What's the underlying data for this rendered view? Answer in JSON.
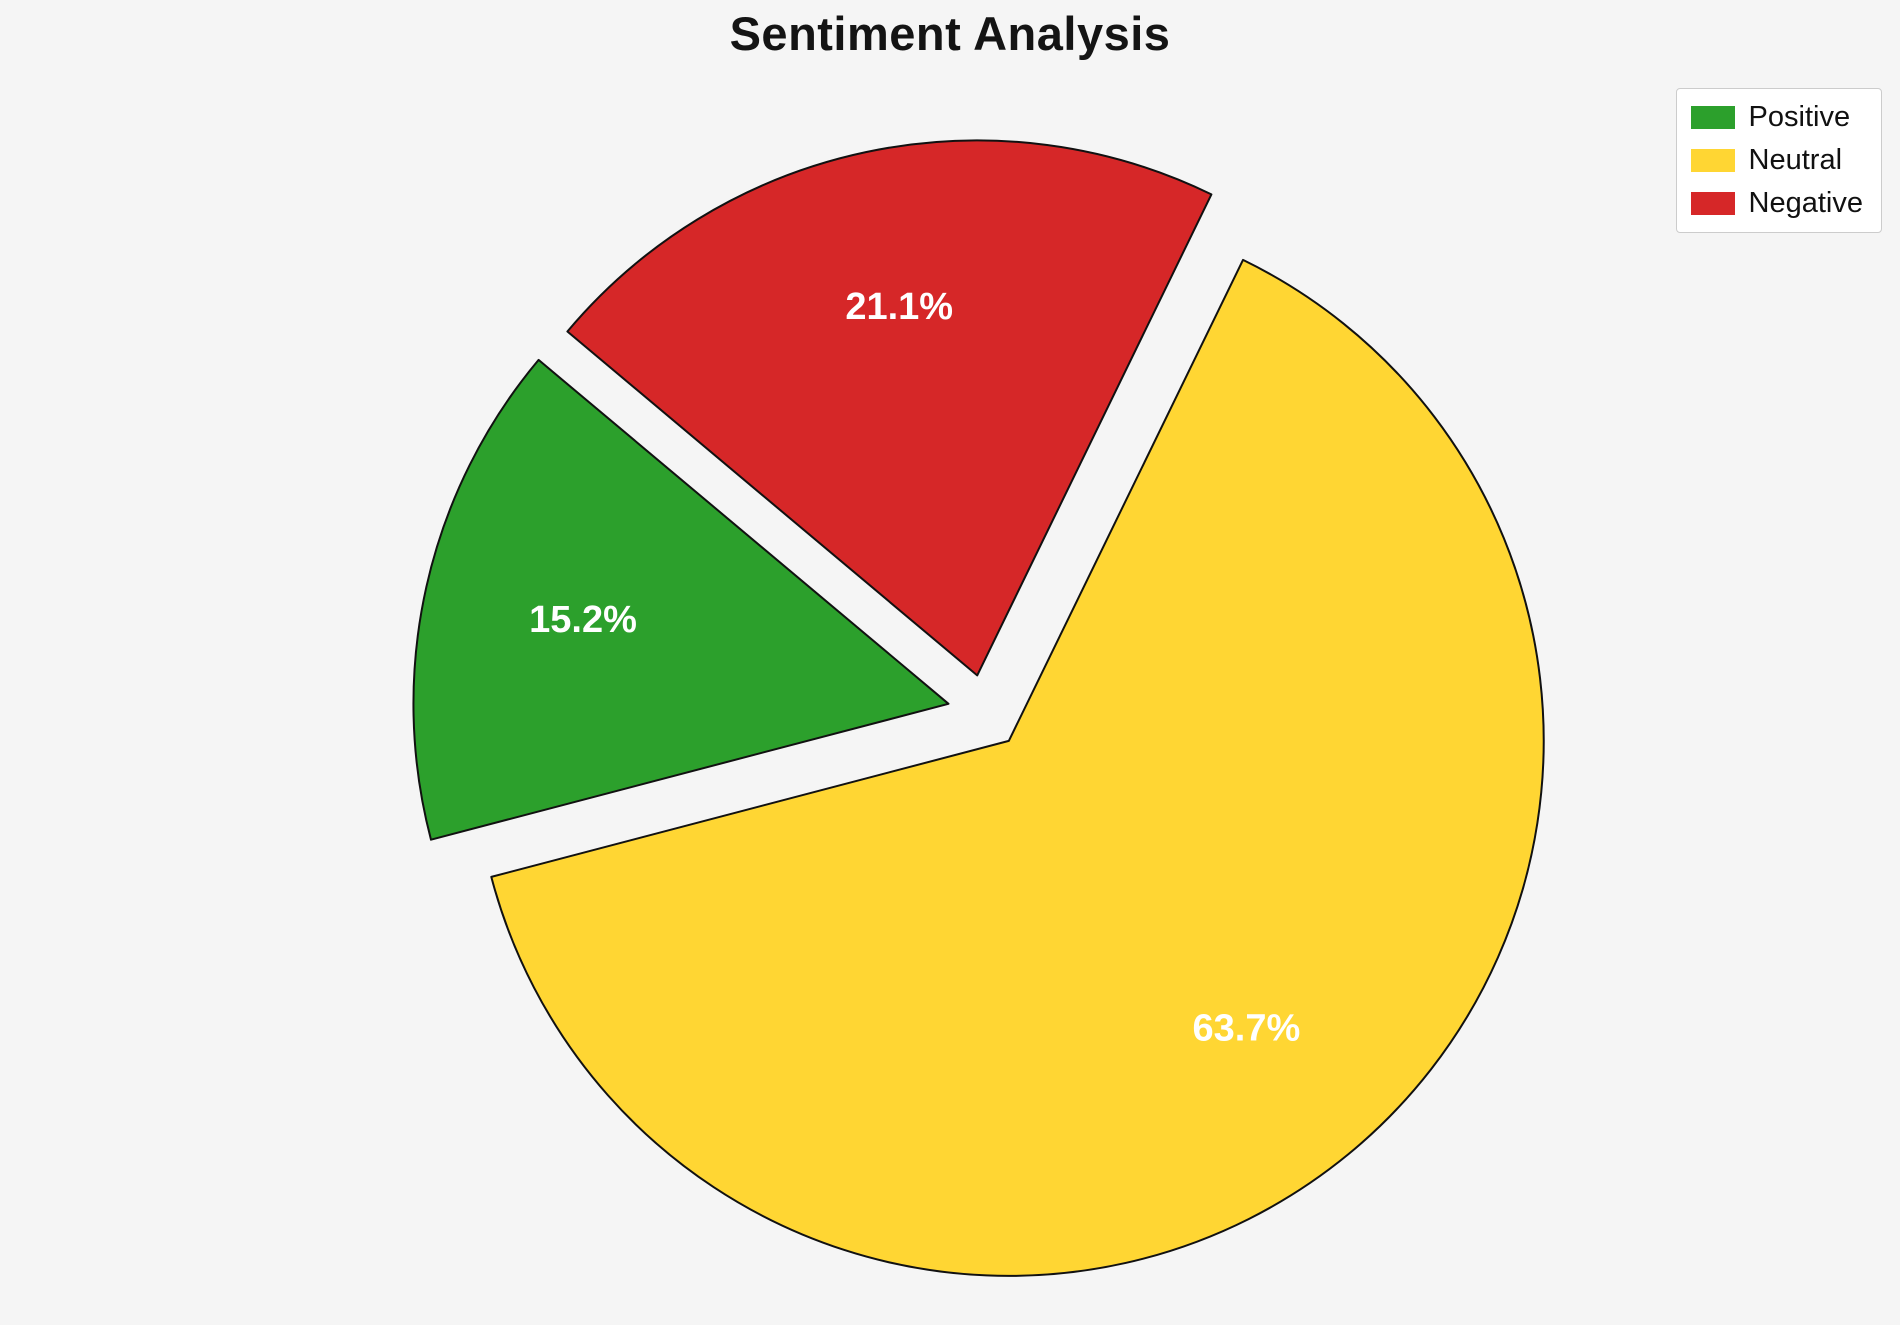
{
  "title": "Sentiment Analysis",
  "chart_data": {
    "type": "pie",
    "title": "Sentiment Analysis",
    "labels": [
      "Positive",
      "Neutral",
      "Negative"
    ],
    "values": [
      15.2,
      63.7,
      21.1
    ],
    "value_labels": [
      "15.2%",
      "63.7%",
      "21.1%"
    ],
    "colors": [
      "#2ca02c",
      "#ffd633",
      "#d62728"
    ],
    "start_angle": 140,
    "direction": "counterclockwise",
    "explode": 0.07,
    "pct_distance": 0.7,
    "slice_border_color": "#111111",
    "pct_label_color": "#ffffff",
    "background": "#f5f5f5",
    "legend": {
      "position": "top-right",
      "items": [
        {
          "label": "Positive",
          "color": "#2ca02c"
        },
        {
          "label": "Neutral",
          "color": "#ffd633"
        },
        {
          "label": "Negative",
          "color": "#d62728"
        }
      ]
    }
  }
}
